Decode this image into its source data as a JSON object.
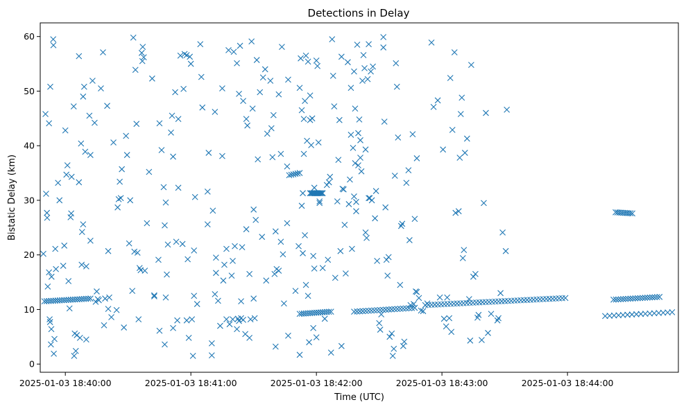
{
  "chart_data": {
    "type": "scatter",
    "title": "Detections in Delay",
    "xlabel": "Time (UTC)",
    "ylabel": "Bistatic Delay (km)",
    "x_ticks": [
      "2025-01-03 18:40:00",
      "2025-01-03 18:41:00",
      "2025-01-03 18:42:00",
      "2025-01-03 18:43:00",
      "2025-01-03 18:44:00"
    ],
    "x_tick_seconds": [
      0,
      60,
      120,
      180,
      240
    ],
    "x_range_seconds": [
      -12,
      293
    ],
    "y_ticks": [
      0,
      10,
      20,
      30,
      40,
      50,
      60
    ],
    "ylim": [
      -1.5,
      62.5
    ],
    "marker": "x",
    "color": "#1f77b4",
    "grid": false,
    "legend": "none",
    "track_segments": [
      {
        "t0": -10,
        "t1": 12,
        "d0": 11.5,
        "d1": 12.0,
        "n": 22
      },
      {
        "t0": 112,
        "t1": 127,
        "d0": 9.2,
        "d1": 9.6,
        "n": 16
      },
      {
        "t0": 138,
        "t1": 167,
        "d0": 9.6,
        "d1": 10.3,
        "n": 22
      },
      {
        "t0": 172,
        "t1": 239,
        "d0": 10.8,
        "d1": 12.1,
        "n": 45
      },
      {
        "t0": 262,
        "t1": 284,
        "d0": 11.8,
        "d1": 12.3,
        "n": 20
      },
      {
        "t0": 258,
        "t1": 290,
        "d0": 8.8,
        "d1": 9.5,
        "n": 16
      },
      {
        "t0": 117,
        "t1": 123,
        "d0": 31.3,
        "d1": 31.3,
        "n": 12
      },
      {
        "t0": 107,
        "t1": 112,
        "d0": 34.6,
        "d1": 35.0,
        "n": 6
      },
      {
        "t0": 263,
        "t1": 271,
        "d0": 27.8,
        "d1": 27.6,
        "n": 10
      }
    ],
    "points": [
      [
        -10.5,
        20.2
      ],
      [
        -9.5,
        45.8
      ],
      [
        -9.2,
        31.2
      ],
      [
        -8.8,
        27.7
      ],
      [
        -8.7,
        26.8
      ],
      [
        -8.4,
        14.2
      ],
      [
        -7.8,
        44.1
      ],
      [
        -7.8,
        16.8
      ],
      [
        -7.2,
        50.8
      ],
      [
        -6.9,
        3.6
      ],
      [
        -6.7,
        6.4
      ],
      [
        -6.6,
        16.0
      ],
      [
        -5.8,
        59.5
      ],
      [
        -5.7,
        58.4
      ],
      [
        -5.5,
        1.9
      ],
      [
        -5.2,
        4.6
      ],
      [
        -4.8,
        21.1
      ],
      [
        -4.5,
        17.4
      ],
      [
        -3.5,
        33.2
      ],
      [
        -2.8,
        30.0
      ],
      [
        -7.5,
        8.2
      ],
      [
        -7.3,
        7.7
      ],
      [
        -1.0,
        18.0
      ],
      [
        -0.5,
        21.7
      ],
      [
        0.0,
        42.8
      ],
      [
        0.5,
        34.7
      ],
      [
        1.0,
        36.4
      ],
      [
        1.5,
        15.2
      ],
      [
        2.0,
        10.2
      ],
      [
        2.5,
        26.9
      ],
      [
        2.8,
        27.6
      ],
      [
        3.0,
        34.3
      ],
      [
        4.0,
        47.2
      ],
      [
        4.2,
        1.5
      ],
      [
        4.5,
        5.6
      ],
      [
        5.0,
        2.4
      ],
      [
        5.5,
        5.3
      ],
      [
        6.5,
        56.4
      ],
      [
        6.5,
        33.3
      ],
      [
        7.0,
        4.8
      ],
      [
        7.5,
        40.4
      ],
      [
        7.8,
        18.2
      ],
      [
        8.0,
        24.2
      ],
      [
        8.5,
        49.0
      ],
      [
        8.5,
        25.6
      ],
      [
        9.0,
        50.8
      ],
      [
        9.5,
        38.9
      ],
      [
        10.0,
        17.9
      ],
      [
        10.0,
        4.5
      ],
      [
        11.5,
        45.5
      ],
      [
        12.0,
        22.6
      ],
      [
        12.0,
        38.3
      ],
      [
        13.0,
        51.9
      ],
      [
        14.0,
        44.2
      ],
      [
        14.5,
        11.4
      ],
      [
        15.0,
        13.3
      ],
      [
        15.5,
        11.9
      ],
      [
        16.0,
        11.7
      ],
      [
        17.0,
        50.5
      ],
      [
        18.0,
        57.1
      ],
      [
        18.5,
        7.1
      ],
      [
        19.0,
        12.0
      ],
      [
        20.0,
        47.3
      ],
      [
        20.5,
        20.7
      ],
      [
        20.5,
        10.1
      ],
      [
        21.0,
        12.2
      ],
      [
        22.0,
        8.6
      ],
      [
        23.0,
        40.6
      ],
      [
        24.5,
        9.9
      ],
      [
        25.0,
        28.7
      ],
      [
        25.5,
        30.2
      ],
      [
        26.0,
        33.4
      ],
      [
        26.5,
        30.4
      ],
      [
        27.0,
        35.7
      ],
      [
        28.0,
        6.7
      ],
      [
        29.0,
        41.8
      ],
      [
        29.5,
        38.3
      ],
      [
        30.5,
        22.1
      ],
      [
        31.0,
        30.0
      ],
      [
        32.5,
        59.8
      ],
      [
        33.0,
        20.6
      ],
      [
        33.5,
        53.9
      ],
      [
        34.0,
        44.0
      ],
      [
        34.5,
        20.4
      ],
      [
        35.0,
        8.2
      ],
      [
        35.5,
        17.6
      ],
      [
        36.0,
        17.2
      ],
      [
        36.5,
        57.0
      ],
      [
        36.8,
        55.5
      ],
      [
        37.0,
        58.1
      ],
      [
        37.5,
        56.2
      ],
      [
        38.0,
        17.1
      ],
      [
        39.0,
        25.8
      ],
      [
        40.0,
        35.2
      ],
      [
        41.5,
        52.3
      ],
      [
        42.5,
        12.4
      ],
      [
        44.5,
        19.1
      ],
      [
        45.0,
        44.1
      ],
      [
        45.0,
        6.1
      ],
      [
        46.0,
        39.2
      ],
      [
        47.0,
        32.4
      ],
      [
        47.5,
        3.6
      ],
      [
        47.5,
        25.4
      ],
      [
        48.0,
        29.6
      ],
      [
        48.5,
        16.4
      ],
      [
        49.0,
        21.9
      ],
      [
        50.5,
        42.4
      ],
      [
        51.0,
        45.5
      ],
      [
        51.5,
        38.0
      ],
      [
        51.5,
        6.6
      ],
      [
        52.5,
        49.8
      ],
      [
        53.0,
        22.4
      ],
      [
        53.5,
        8.0
      ],
      [
        54.0,
        32.3
      ],
      [
        54.0,
        44.9
      ],
      [
        55.0,
        56.5
      ],
      [
        56.0,
        22.0
      ],
      [
        56.5,
        50.4
      ],
      [
        57.0,
        56.8
      ],
      [
        58.0,
        56.6
      ],
      [
        58.0,
        8.0
      ],
      [
        58.5,
        19.2
      ],
      [
        59.0,
        4.8
      ],
      [
        59.5,
        56.3
      ],
      [
        60.0,
        55.0
      ],
      [
        60.5,
        8.2
      ],
      [
        61.0,
        1.5
      ],
      [
        61.5,
        20.8
      ],
      [
        61.5,
        12.5
      ],
      [
        62.0,
        30.6
      ],
      [
        63.0,
        11.0
      ],
      [
        64.5,
        58.6
      ],
      [
        65.0,
        52.6
      ],
      [
        65.5,
        47.0
      ],
      [
        68.0,
        31.6
      ],
      [
        68.0,
        25.6
      ],
      [
        68.5,
        38.7
      ],
      [
        70.0,
        3.8
      ],
      [
        70.0,
        1.6
      ],
      [
        70.5,
        28.1
      ],
      [
        71.5,
        12.8
      ],
      [
        71.5,
        46.2
      ],
      [
        72.0,
        19.5
      ],
      [
        72.0,
        16.7
      ],
      [
        73.0,
        11.6
      ],
      [
        74.0,
        7.0
      ],
      [
        75.0,
        38.1
      ],
      [
        75.0,
        50.5
      ],
      [
        75.5,
        15.3
      ],
      [
        76.0,
        18.2
      ],
      [
        77.0,
        21.1
      ],
      [
        77.0,
        8.2
      ],
      [
        78.0,
        57.5
      ],
      [
        78.5,
        7.3
      ],
      [
        79.5,
        16.2
      ],
      [
        80.0,
        18.9
      ],
      [
        80.5,
        57.2
      ],
      [
        81.0,
        21.6
      ],
      [
        82.0,
        6.4
      ],
      [
        82.0,
        55.1
      ],
      [
        83.0,
        49.5
      ],
      [
        83.5,
        58.3
      ],
      [
        84.0,
        11.5
      ],
      [
        84.5,
        21.4
      ],
      [
        85.0,
        48.2
      ],
      [
        86.0,
        5.5
      ],
      [
        86.5,
        44.9
      ],
      [
        86.5,
        24.7
      ],
      [
        87.0,
        43.7
      ],
      [
        88.0,
        4.8
      ],
      [
        88.0,
        16.5
      ],
      [
        89.0,
        59.1
      ],
      [
        89.5,
        46.8
      ],
      [
        90.0,
        12.0
      ],
      [
        90.0,
        28.3
      ],
      [
        91.0,
        26.4
      ],
      [
        91.5,
        55.7
      ],
      [
        92.0,
        37.5
      ],
      [
        93.0,
        49.8
      ],
      [
        94.0,
        23.3
      ],
      [
        94.5,
        52.5
      ],
      [
        95.5,
        54.0
      ],
      [
        96.0,
        15.3
      ],
      [
        96.5,
        42.2
      ],
      [
        98.0,
        51.9
      ],
      [
        98.5,
        43.2
      ],
      [
        99.0,
        37.9
      ],
      [
        99.5,
        45.6
      ],
      [
        100.0,
        16.5
      ],
      [
        100.5,
        24.3
      ],
      [
        100.5,
        3.2
      ],
      [
        101.0,
        17.4
      ],
      [
        102.0,
        17.1
      ],
      [
        102.0,
        49.4
      ],
      [
        103.0,
        38.5
      ],
      [
        103.0,
        22.4
      ],
      [
        103.5,
        58.1
      ],
      [
        104.0,
        20.1
      ],
      [
        104.5,
        11.1
      ],
      [
        106.0,
        25.8
      ],
      [
        106.0,
        36.2
      ],
      [
        106.5,
        52.1
      ],
      [
        106.5,
        5.2
      ],
      [
        110.0,
        13.4
      ],
      [
        111.5,
        21.6
      ],
      [
        112.0,
        1.7
      ],
      [
        112.0,
        50.6
      ],
      [
        112.5,
        56.0
      ],
      [
        113.0,
        29.0
      ],
      [
        113.0,
        46.5
      ],
      [
        113.5,
        31.3
      ],
      [
        113.5,
        20.3
      ],
      [
        114.0,
        44.9
      ],
      [
        114.0,
        38.5
      ],
      [
        114.5,
        48.2
      ],
      [
        114.5,
        23.6
      ],
      [
        115.0,
        56.5
      ],
      [
        115.0,
        14.5
      ],
      [
        115.5,
        40.9
      ],
      [
        116.0,
        12.5
      ],
      [
        116.0,
        55.4
      ],
      [
        116.5,
        4.0
      ],
      [
        117.0,
        49.2
      ],
      [
        117.0,
        44.7
      ],
      [
        117.5,
        40.1
      ],
      [
        118.0,
        45.0
      ],
      [
        118.5,
        19.8
      ],
      [
        118.5,
        6.6
      ],
      [
        119.0,
        32.3
      ],
      [
        119.0,
        17.5
      ],
      [
        120.0,
        55.6
      ],
      [
        120.0,
        4.9
      ],
      [
        120.5,
        54.6
      ],
      [
        121.0,
        40.6
      ],
      [
        121.5,
        29.8
      ],
      [
        121.5,
        29.5
      ],
      [
        123.0,
        17.6
      ],
      [
        124.0,
        8.3
      ],
      [
        125.0,
        32.8
      ],
      [
        125.5,
        19.1
      ],
      [
        126.0,
        33.3
      ],
      [
        126.5,
        34.3
      ],
      [
        127.0,
        2.1
      ],
      [
        127.5,
        59.5
      ],
      [
        128.0,
        52.8
      ],
      [
        128.5,
        47.2
      ],
      [
        129.0,
        15.8
      ],
      [
        130.0,
        29.8
      ],
      [
        130.5,
        37.4
      ],
      [
        131.0,
        44.7
      ],
      [
        131.5,
        20.7
      ],
      [
        132.0,
        3.3
      ],
      [
        132.0,
        56.3
      ],
      [
        132.5,
        32.1
      ],
      [
        133.0,
        32.0
      ],
      [
        133.5,
        25.5
      ],
      [
        134.0,
        16.6
      ],
      [
        135.0,
        55.3
      ],
      [
        135.5,
        29.3
      ],
      [
        136.0,
        33.8
      ],
      [
        136.5,
        42.0
      ],
      [
        136.5,
        50.6
      ],
      [
        137.0,
        21.1
      ],
      [
        137.5,
        39.6
      ],
      [
        138.0,
        53.6
      ],
      [
        138.0,
        30.7
      ],
      [
        138.5,
        36.8
      ],
      [
        138.5,
        46.8
      ],
      [
        139.0,
        28.0
      ],
      [
        139.0,
        29.7
      ],
      [
        139.5,
        58.5
      ],
      [
        140.0,
        36.4
      ],
      [
        140.0,
        42.3
      ],
      [
        140.5,
        44.8
      ],
      [
        141.0,
        41.0
      ],
      [
        141.0,
        37.8
      ],
      [
        141.5,
        35.3
      ],
      [
        142.0,
        51.9
      ],
      [
        142.5,
        56.6
      ],
      [
        143.0,
        54.2
      ],
      [
        143.5,
        39.3
      ],
      [
        143.5,
        24.1
      ],
      [
        144.0,
        23.1
      ],
      [
        144.5,
        52.2
      ],
      [
        145.0,
        58.6
      ],
      [
        145.0,
        30.4
      ],
      [
        145.5,
        30.4
      ],
      [
        146.0,
        53.6
      ],
      [
        146.5,
        30.0
      ],
      [
        147.0,
        54.5
      ],
      [
        148.0,
        26.7
      ],
      [
        148.5,
        31.7
      ],
      [
        149.0,
        18.9
      ],
      [
        150.0,
        7.5
      ],
      [
        150.5,
        6.3
      ],
      [
        151.0,
        9.1
      ],
      [
        152.0,
        59.9
      ],
      [
        152.0,
        58.0
      ],
      [
        152.5,
        44.4
      ],
      [
        153.0,
        28.7
      ],
      [
        153.5,
        19.1
      ],
      [
        154.0,
        16.2
      ],
      [
        154.5,
        19.6
      ],
      [
        155.0,
        5.0
      ],
      [
        156.0,
        5.6
      ],
      [
        156.5,
        1.5
      ],
      [
        157.0,
        2.8
      ],
      [
        157.5,
        34.5
      ],
      [
        158.0,
        55.1
      ],
      [
        158.5,
        50.8
      ],
      [
        159.0,
        41.5
      ],
      [
        160.0,
        14.5
      ],
      [
        160.5,
        25.3
      ],
      [
        161.0,
        25.7
      ],
      [
        161.5,
        3.3
      ],
      [
        162.0,
        4.1
      ],
      [
        163.0,
        33.2
      ],
      [
        164.0,
        35.5
      ],
      [
        164.5,
        22.7
      ],
      [
        165.0,
        10.8
      ],
      [
        166.0,
        42.1
      ],
      [
        167.0,
        26.6
      ],
      [
        168.0,
        37.7
      ],
      [
        169.0,
        12.1
      ],
      [
        175.0,
        58.9
      ],
      [
        176.0,
        47.1
      ],
      [
        178.0,
        48.3
      ],
      [
        179.0,
        12.2
      ],
      [
        180.5,
        39.3
      ],
      [
        181.0,
        8.3
      ],
      [
        182.0,
        6.9
      ],
      [
        182.5,
        12.2
      ],
      [
        183.5,
        8.4
      ],
      [
        184.0,
        52.4
      ],
      [
        184.5,
        5.9
      ],
      [
        185.0,
        42.9
      ],
      [
        186.0,
        57.1
      ],
      [
        186.5,
        27.7
      ],
      [
        188.0,
        28.0
      ],
      [
        188.5,
        37.8
      ],
      [
        189.0,
        45.8
      ],
      [
        189.5,
        48.8
      ],
      [
        190.0,
        19.4
      ],
      [
        190.5,
        20.9
      ],
      [
        191.0,
        38.7
      ],
      [
        192.0,
        41.3
      ],
      [
        193.0,
        11.9
      ],
      [
        193.5,
        4.3
      ],
      [
        194.0,
        54.8
      ],
      [
        195.0,
        16.0
      ],
      [
        196.0,
        16.5
      ],
      [
        197.0,
        8.5
      ],
      [
        197.5,
        9.0
      ],
      [
        199.0,
        4.4
      ],
      [
        200.0,
        29.5
      ],
      [
        201.0,
        46.0
      ],
      [
        202.0,
        5.7
      ],
      [
        203.5,
        9.2
      ],
      [
        208.0,
        13.0
      ],
      [
        209.0,
        24.1
      ],
      [
        210.5,
        20.7
      ],
      [
        211.0,
        46.6
      ],
      [
        166.5,
        11.0
      ],
      [
        167.5,
        13.3
      ],
      [
        168.0,
        13.2
      ],
      [
        170.0,
        9.8
      ],
      [
        171.0,
        9.7
      ],
      [
        173.0,
        11.1
      ],
      [
        206.5,
        8.0
      ],
      [
        207.0,
        8.4
      ],
      [
        80.0,
        8.2
      ],
      [
        82.5,
        8.3
      ],
      [
        83.0,
        7.9
      ],
      [
        84.0,
        8.4
      ],
      [
        85.0,
        8.1
      ],
      [
        88.5,
        8.2
      ],
      [
        90.5,
        8.4
      ],
      [
        42.5,
        12.6
      ],
      [
        32.0,
        13.4
      ],
      [
        48.0,
        12.2
      ]
    ]
  }
}
